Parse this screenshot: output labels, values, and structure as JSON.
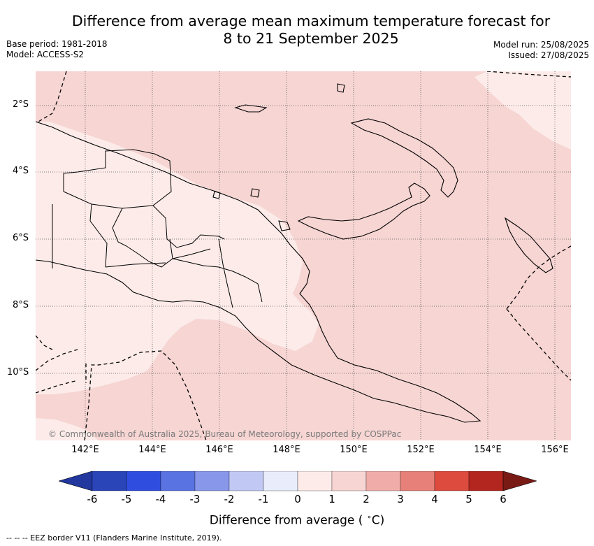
{
  "title_line1": "Difference from average mean maximum temperature forecast for",
  "title_line2": "8 to 21 September 2025",
  "base_period": "Base period: 1981-2018",
  "model": "Model: ACCESS-S2",
  "model_run": "Model run: 25/08/2025",
  "issued": "Issued: 27/08/2025",
  "x_ticks": [
    "142°E",
    "144°E",
    "146°E",
    "148°E",
    "150°E",
    "152°E",
    "154°E",
    "156°E"
  ],
  "y_ticks": [
    "2°S",
    "4°S",
    "6°S",
    "8°S",
    "10°S"
  ],
  "copyright": "© Commonwealth of Australia 2025, Bureau of Meteorology, supported by COSPPac",
  "colorbar": {
    "labels": [
      "-6",
      "-5",
      "-4",
      "-3",
      "-2",
      "-1",
      "0",
      "1",
      "2",
      "3",
      "4",
      "5",
      "6"
    ],
    "colors": [
      "#22389f",
      "#2a45b8",
      "#2f4ee0",
      "#5a73e2",
      "#8897ea",
      "#c0c8f3",
      "#e8ecfb",
      "#fcebe9",
      "#f6d5d3",
      "#f0aca8",
      "#e68078",
      "#dd4a3e",
      "#b3261f",
      "#7a1a15"
    ],
    "title": "Difference from average ( °C)"
  },
  "map_fill_colors": {
    "warm_1_to_2": "#f6d5d3",
    "warm_0_to_1": "#fcebe9",
    "land_outline": "#000000"
  },
  "footnote": "--  --  -- EEZ border V11 (Flanders Marine Institute, 2019)."
}
